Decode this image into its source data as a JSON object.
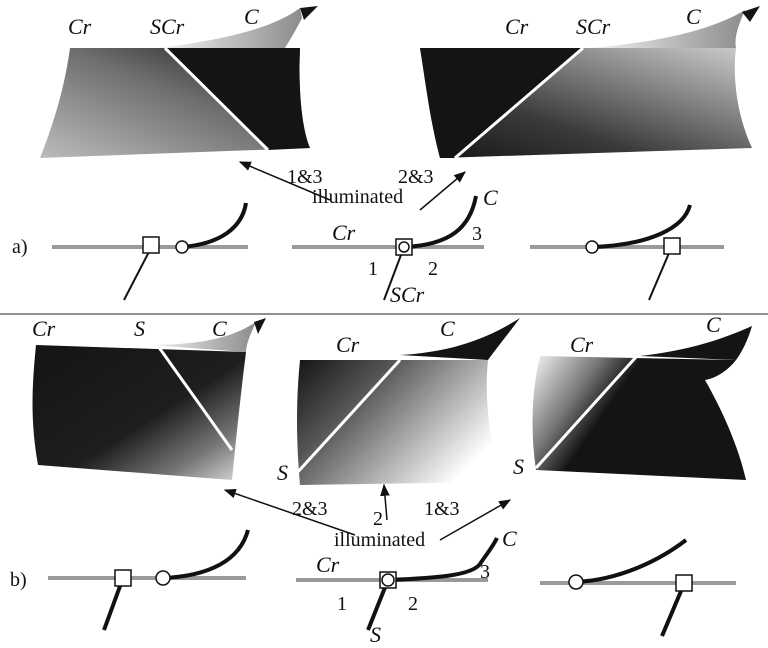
{
  "figure": {
    "top": {
      "panel_label": "a)",
      "illuminated_text": "illuminated",
      "arrow_labels": {
        "left": "1&3",
        "right": "2&3"
      },
      "surface_left": {
        "label_cr": "Cr",
        "label_scr": "SCr",
        "label_c": "C"
      },
      "surface_right": {
        "label_cr": "Cr",
        "label_scr": "SCr",
        "label_c": "C"
      },
      "schematic_middle": {
        "label_cr": "Cr",
        "label_c": "C",
        "label_scr": "SCr",
        "region_1": "1",
        "region_2": "2",
        "region_3": "3"
      }
    },
    "bottom": {
      "panel_label": "b)",
      "illuminated_text": "illuminated",
      "arrow_labels": {
        "left": "2&3",
        "middle": "2",
        "right": "1&3"
      },
      "surface_left": {
        "label_cr": "Cr",
        "label_s": "S",
        "label_c": "C"
      },
      "surface_middle": {
        "label_cr": "Cr",
        "label_c": "C",
        "label_s": "S"
      },
      "surface_right": {
        "label_cr": "Cr",
        "label_c": "C",
        "label_s": "S"
      },
      "schematic_middle": {
        "label_cr": "Cr",
        "label_c": "C",
        "label_s": "S",
        "region_1": "1",
        "region_2": "2",
        "region_3": "3"
      }
    },
    "colors": {
      "dark": "#111111",
      "gray_line": "#9a9a9a",
      "white": "#ffffff"
    }
  }
}
